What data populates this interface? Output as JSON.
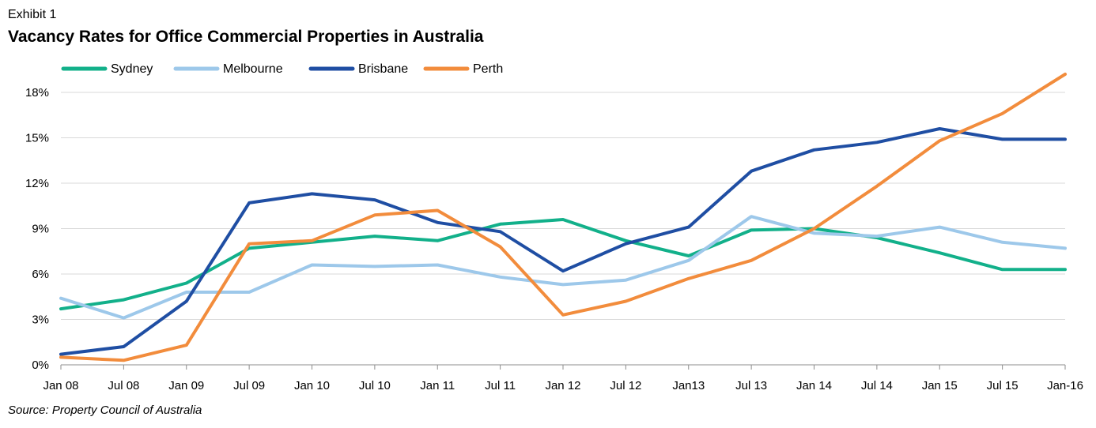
{
  "header": {
    "exhibit": "Exhibit 1",
    "title": "Vacancy Rates for Office Commercial Properties in Australia"
  },
  "footer": {
    "source": "Source: Property Council of Australia"
  },
  "chart_data": {
    "type": "line",
    "title": "Vacancy Rates for Office Commercial Properties in Australia",
    "xlabel": "",
    "ylabel": "",
    "categories": [
      "Jan 08",
      "Jul 08",
      "Jan 09",
      "Jul 09",
      "Jan 10",
      "Jul 10",
      "Jan 11",
      "Jul 11",
      "Jan 12",
      "Jul 12",
      "Jan13",
      "Jul 13",
      "Jan 14",
      "Jul 14",
      "Jan 15",
      "Jul 15",
      "Jan-16"
    ],
    "ylim": [
      0,
      18
    ],
    "yticks": [
      0,
      3,
      6,
      9,
      12,
      15,
      18
    ],
    "ytick_labels": [
      "0%",
      "3%",
      "6%",
      "9%",
      "12%",
      "15%",
      "18%"
    ],
    "grid": true,
    "legend_position": "top-left",
    "series": [
      {
        "name": "Sydney",
        "color": "#12b08a",
        "values": [
          3.7,
          4.3,
          5.4,
          7.7,
          8.1,
          8.5,
          8.2,
          9.3,
          9.6,
          8.2,
          7.2,
          8.9,
          9.0,
          8.4,
          7.4,
          6.3,
          6.3
        ]
      },
      {
        "name": "Melbourne",
        "color": "#9dc8ea",
        "values": [
          4.4,
          3.1,
          4.8,
          4.8,
          6.6,
          6.5,
          6.6,
          5.8,
          5.3,
          5.6,
          6.9,
          9.8,
          8.7,
          8.5,
          9.1,
          8.1,
          7.7
        ]
      },
      {
        "name": "Brisbane",
        "color": "#1f4ea3",
        "values": [
          0.7,
          1.2,
          4.2,
          10.7,
          11.3,
          10.9,
          9.4,
          8.8,
          6.2,
          8.0,
          9.1,
          12.8,
          14.2,
          14.7,
          15.6,
          14.9,
          14.9
        ]
      },
      {
        "name": "Perth",
        "color": "#f28c3c",
        "values": [
          0.5,
          0.3,
          1.3,
          8.0,
          8.2,
          9.9,
          10.2,
          7.8,
          3.3,
          4.2,
          5.7,
          6.9,
          9.0,
          11.8,
          14.8,
          16.6,
          19.2
        ]
      }
    ]
  }
}
